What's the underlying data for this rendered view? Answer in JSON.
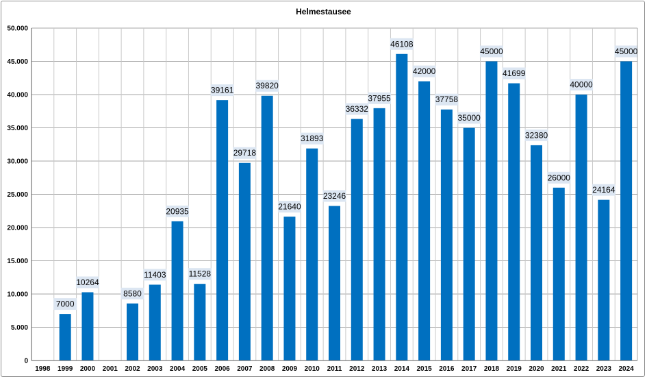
{
  "chart_data": {
    "type": "bar",
    "title": "Helmestausee",
    "xlabel": "",
    "ylabel": "",
    "ylim": [
      0,
      50000
    ],
    "yticks": [
      0,
      5000,
      10000,
      15000,
      20000,
      25000,
      30000,
      35000,
      40000,
      45000,
      50000
    ],
    "ytick_labels": [
      "0",
      "5.000",
      "10.000",
      "15.000",
      "20.000",
      "25.000",
      "30.000",
      "35.000",
      "40.000",
      "45.000",
      "50.000"
    ],
    "categories": [
      "1998",
      "1999",
      "2000",
      "2001",
      "2002",
      "2003",
      "2004",
      "2005",
      "2006",
      "2007",
      "2008",
      "2009",
      "2010",
      "2011",
      "2012",
      "2013",
      "2014",
      "2015",
      "2016",
      "2017",
      "2018",
      "2019",
      "2020",
      "2021",
      "2022",
      "2023",
      "2024"
    ],
    "values": [
      null,
      7000,
      10264,
      null,
      8580,
      11403,
      20935,
      11528,
      39161,
      29718,
      39820,
      21640,
      31893,
      23246,
      36332,
      37955,
      46108,
      42000,
      37758,
      35000,
      45000,
      41699,
      32380,
      26000,
      40000,
      24164,
      45000
    ],
    "grid": true,
    "legend": "none",
    "bar_color": "#0070c0",
    "label_bg_color": "#dce6f2"
  }
}
